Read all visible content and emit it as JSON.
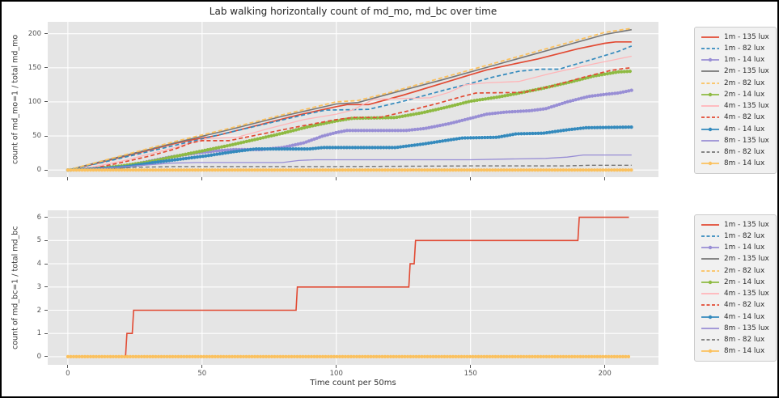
{
  "figure": {
    "title": "Lab walking horizontally count of md_mo, md_bc over time"
  },
  "colors": {
    "figure_bg": "#ffffff",
    "frame": "#000000",
    "plot_bg": "#e5e5e5",
    "grid": "#ffffff",
    "tick_label": "#555555",
    "axis_label": "#3a3a3a",
    "title": "#262626",
    "legend_bg": "#f1f1f1",
    "legend_border": "#cccccc",
    "palette": {
      "red": "#E24A33",
      "blue": "#348ABD",
      "purple": "#988ED5",
      "gray": "#777777",
      "yellow": "#FBC15E",
      "green": "#8EBA42",
      "pink": "#FFB5B8"
    }
  },
  "legend": {
    "entries": [
      {
        "label": "1m - 135 lux",
        "color": "#E24A33",
        "style": "solid"
      },
      {
        "label": "1m - 82 lux",
        "color": "#348ABD",
        "style": "dashed"
      },
      {
        "label": "1m - 14 lux",
        "color": "#988ED5",
        "style": "marker"
      },
      {
        "label": "2m - 135 lux",
        "color": "#777777",
        "style": "solid"
      },
      {
        "label": "2m - 82 lux",
        "color": "#FBC15E",
        "style": "dashed"
      },
      {
        "label": "2m - 14 lux",
        "color": "#8EBA42",
        "style": "marker"
      },
      {
        "label": "4m - 135 lux",
        "color": "#FFB5B8",
        "style": "solid"
      },
      {
        "label": "4m - 82 lux",
        "color": "#E24A33",
        "style": "dashed"
      },
      {
        "label": "4m - 14 lux",
        "color": "#348ABD",
        "style": "marker"
      },
      {
        "label": "8m - 135 lux",
        "color": "#988ED5",
        "style": "solid"
      },
      {
        "label": "8m - 82 lux",
        "color": "#777777",
        "style": "dashed"
      },
      {
        "label": "8m - 14 lux",
        "color": "#FBC15E",
        "style": "marker"
      }
    ]
  },
  "chart_data": [
    {
      "id": "md_mo",
      "type": "line",
      "title": "Lab walking horizontally count of md_mo, md_bc over time",
      "xlabel": "",
      "ylabel": "count of md_mo=1 / total md_mo",
      "xlim": [
        -7.5,
        220
      ],
      "ylim": [
        -10.5,
        217.5
      ],
      "xticks": [
        0,
        50,
        100,
        150,
        200
      ],
      "xtick_labels_visible": false,
      "yticks": [
        0,
        50,
        100,
        150,
        200
      ],
      "grid": true,
      "legend_position": "right",
      "series": [
        {
          "name": "1m - 135 lux",
          "color": "#E24A33",
          "style": "solid",
          "width": 1.7,
          "points": [
            [
              0,
              0
            ],
            [
              10,
              9
            ],
            [
              20,
              19
            ],
            [
              30,
              29
            ],
            [
              40,
              39
            ],
            [
              46,
              44
            ],
            [
              56,
              51
            ],
            [
              70,
              65
            ],
            [
              85,
              80
            ],
            [
              100,
              93
            ],
            [
              104,
              96
            ],
            [
              112,
              96
            ],
            [
              125,
              110
            ],
            [
              140,
              128
            ],
            [
              150,
              140
            ],
            [
              156,
              147
            ],
            [
              163,
              153
            ],
            [
              175,
              163
            ],
            [
              190,
              178
            ],
            [
              200,
              186
            ],
            [
              204,
              188
            ],
            [
              210,
              188
            ]
          ]
        },
        {
          "name": "1m - 82 lux",
          "color": "#348ABD",
          "style": "dashed",
          "width": 1.7,
          "points": [
            [
              0,
              0
            ],
            [
              15,
              13
            ],
            [
              30,
              27
            ],
            [
              45,
              41
            ],
            [
              60,
              55
            ],
            [
              75,
              69
            ],
            [
              90,
              83
            ],
            [
              96,
              88
            ],
            [
              112,
              89
            ],
            [
              125,
              101
            ],
            [
              140,
              117
            ],
            [
              150,
              127
            ],
            [
              158,
              136
            ],
            [
              168,
              145
            ],
            [
              176,
              148
            ],
            [
              183,
              148
            ],
            [
              195,
              162
            ],
            [
              205,
              174
            ],
            [
              210,
              182
            ]
          ]
        },
        {
          "name": "1m - 14 lux",
          "color": "#988ED5",
          "style": "marker",
          "width": 1.8,
          "points": [
            [
              0,
              0
            ],
            [
              10,
              1
            ],
            [
              18,
              4
            ],
            [
              28,
              11
            ],
            [
              38,
              19
            ],
            [
              48,
              25
            ],
            [
              55,
              28
            ],
            [
              62,
              30
            ],
            [
              72,
              30
            ],
            [
              80,
              33
            ],
            [
              88,
              40
            ],
            [
              95,
              50
            ],
            [
              100,
              55
            ],
            [
              104,
              58
            ],
            [
              126,
              58
            ],
            [
              133,
              61
            ],
            [
              142,
              68
            ],
            [
              150,
              76
            ],
            [
              156,
              82
            ],
            [
              163,
              85
            ],
            [
              172,
              87
            ],
            [
              178,
              90
            ],
            [
              186,
              100
            ],
            [
              194,
              108
            ],
            [
              200,
              111
            ],
            [
              205,
              113
            ],
            [
              210,
              117
            ]
          ]
        },
        {
          "name": "2m - 135 lux",
          "color": "#777777",
          "style": "solid",
          "width": 1.6,
          "points": [
            [
              0,
              0
            ],
            [
              20,
              20
            ],
            [
              40,
              40
            ],
            [
              60,
              59
            ],
            [
              80,
              79
            ],
            [
              100,
              97
            ],
            [
              108,
              99
            ],
            [
              120,
              112
            ],
            [
              140,
              133
            ],
            [
              160,
              155
            ],
            [
              180,
              177
            ],
            [
              200,
              199
            ],
            [
              210,
              206
            ]
          ]
        },
        {
          "name": "2m - 82 lux",
          "color": "#FBC15E",
          "style": "dashed",
          "width": 1.8,
          "points": [
            [
              0,
              0
            ],
            [
              20,
              21
            ],
            [
              40,
              42
            ],
            [
              60,
              61
            ],
            [
              80,
              81
            ],
            [
              100,
              100
            ],
            [
              108,
              102
            ],
            [
              120,
              114
            ],
            [
              140,
              136
            ],
            [
              160,
              158
            ],
            [
              180,
              180
            ],
            [
              200,
              202
            ],
            [
              210,
              208
            ]
          ]
        },
        {
          "name": "2m - 14 lux",
          "color": "#8EBA42",
          "style": "marker",
          "width": 1.8,
          "points": [
            [
              0,
              0
            ],
            [
              10,
              2
            ],
            [
              20,
              6
            ],
            [
              30,
              12
            ],
            [
              40,
              20
            ],
            [
              50,
              28
            ],
            [
              60,
              36
            ],
            [
              70,
              45
            ],
            [
              80,
              54
            ],
            [
              90,
              64
            ],
            [
              100,
              72
            ],
            [
              106,
              76
            ],
            [
              122,
              77
            ],
            [
              132,
              84
            ],
            [
              142,
              93
            ],
            [
              150,
              101
            ],
            [
              160,
              107
            ],
            [
              167,
              112
            ],
            [
              177,
              120
            ],
            [
              187,
              129
            ],
            [
              196,
              138
            ],
            [
              205,
              144
            ],
            [
              210,
              145
            ]
          ]
        },
        {
          "name": "4m - 135 lux",
          "color": "#FFB5B8",
          "style": "solid",
          "width": 1.3,
          "points": [
            [
              0,
              0
            ],
            [
              10,
              5
            ],
            [
              20,
              13
            ],
            [
              30,
              23
            ],
            [
              40,
              33
            ],
            [
              46,
              40
            ],
            [
              52,
              46
            ],
            [
              57,
              47
            ],
            [
              63,
              48
            ],
            [
              75,
              61
            ],
            [
              88,
              74
            ],
            [
              100,
              82
            ],
            [
              106,
              88
            ],
            [
              111,
              98
            ],
            [
              114,
              104
            ],
            [
              135,
              106
            ],
            [
              142,
              114
            ],
            [
              148,
              125
            ],
            [
              156,
              128
            ],
            [
              168,
              130
            ],
            [
              180,
              142
            ],
            [
              195,
              155
            ],
            [
              210,
              167
            ]
          ]
        },
        {
          "name": "4m - 82 lux",
          "color": "#E24A33",
          "style": "dashed",
          "width": 1.7,
          "points": [
            [
              0,
              0
            ],
            [
              10,
              3
            ],
            [
              20,
              11
            ],
            [
              30,
              20
            ],
            [
              40,
              31
            ],
            [
              46,
              40
            ],
            [
              50,
              43
            ],
            [
              60,
              43
            ],
            [
              70,
              51
            ],
            [
              85,
              63
            ],
            [
              100,
              74
            ],
            [
              106,
              77
            ],
            [
              116,
              77
            ],
            [
              126,
              86
            ],
            [
              138,
              98
            ],
            [
              147,
              108
            ],
            [
              152,
              113
            ],
            [
              170,
              114
            ],
            [
              180,
              123
            ],
            [
              192,
              136
            ],
            [
              202,
              146
            ],
            [
              207,
              149
            ],
            [
              210,
              150
            ]
          ]
        },
        {
          "name": "4m - 14 lux",
          "color": "#348ABD",
          "style": "marker",
          "width": 1.8,
          "points": [
            [
              0,
              0
            ],
            [
              12,
              2
            ],
            [
              22,
              5
            ],
            [
              32,
              11
            ],
            [
              42,
              16
            ],
            [
              52,
              21
            ],
            [
              62,
              27
            ],
            [
              70,
              31
            ],
            [
              90,
              31
            ],
            [
              95,
              33
            ],
            [
              122,
              33
            ],
            [
              132,
              38
            ],
            [
              142,
              44
            ],
            [
              147,
              47
            ],
            [
              160,
              48
            ],
            [
              167,
              53
            ],
            [
              177,
              54
            ],
            [
              186,
              59
            ],
            [
              193,
              62
            ],
            [
              210,
              63
            ]
          ]
        },
        {
          "name": "8m - 135 lux",
          "color": "#988ED5",
          "style": "solid",
          "width": 1.3,
          "points": [
            [
              0,
              0
            ],
            [
              12,
              2
            ],
            [
              25,
              6
            ],
            [
              38,
              10
            ],
            [
              48,
              11
            ],
            [
              80,
              11
            ],
            [
              86,
              14
            ],
            [
              92,
              15
            ],
            [
              150,
              15
            ],
            [
              162,
              16
            ],
            [
              178,
              17
            ],
            [
              186,
              19
            ],
            [
              192,
              22
            ],
            [
              200,
              22
            ],
            [
              210,
              22
            ]
          ]
        },
        {
          "name": "8m - 82 lux",
          "color": "#777777",
          "style": "dashed",
          "width": 1.4,
          "points": [
            [
              0,
              0
            ],
            [
              12,
              1
            ],
            [
              25,
              4
            ],
            [
              40,
              5
            ],
            [
              100,
              5
            ],
            [
              150,
              6
            ],
            [
              185,
              6
            ],
            [
              195,
              7
            ],
            [
              210,
              7
            ]
          ]
        },
        {
          "name": "8m - 14 lux",
          "color": "#FBC15E",
          "style": "marker",
          "width": 2.0,
          "points": [
            [
              0,
              0
            ],
            [
              210,
              0
            ]
          ]
        }
      ]
    },
    {
      "id": "md_bc",
      "type": "line",
      "title": "",
      "xlabel": "Time count per 50ms",
      "ylabel": "count of md_bc=1 / total md_bc",
      "xlim": [
        -7.5,
        220
      ],
      "ylim": [
        -0.35,
        6.3
      ],
      "xticks": [
        0,
        50,
        100,
        150,
        200
      ],
      "xtick_labels_visible": true,
      "yticks": [
        0,
        1,
        2,
        3,
        4,
        5,
        6
      ],
      "grid": true,
      "legend_position": "right",
      "series": [
        {
          "name": "1m - 135 lux",
          "color": "#E24A33",
          "style": "solid",
          "width": 1.6,
          "points": [
            [
              0,
              0
            ],
            [
              21.5,
              0
            ],
            [
              22,
              1
            ],
            [
              24,
              1
            ],
            [
              24.5,
              2
            ],
            [
              85,
              2
            ],
            [
              85.5,
              3
            ],
            [
              127,
              3
            ],
            [
              127.5,
              4
            ],
            [
              129,
              4
            ],
            [
              129.5,
              5
            ],
            [
              190,
              5
            ],
            [
              190.5,
              6
            ],
            [
              209,
              6
            ]
          ]
        },
        {
          "name": "8m - 14 lux",
          "color": "#FBC15E",
          "style": "marker",
          "width": 2.2,
          "points": [
            [
              0,
              0
            ],
            [
              209,
              0
            ]
          ]
        }
      ]
    }
  ]
}
